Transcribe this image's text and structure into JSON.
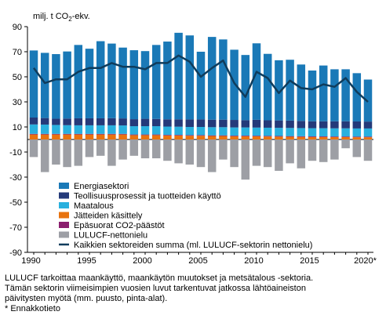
{
  "chart_data": {
    "type": "bar",
    "unit_label": {
      "prefix": "milj. t CO",
      "sub": "2",
      "suffix": "-ekv."
    },
    "years": [
      1990,
      1991,
      1992,
      1993,
      1994,
      1995,
      1996,
      1997,
      1998,
      1999,
      2000,
      2001,
      2002,
      2003,
      2004,
      2005,
      2006,
      2007,
      2008,
      2009,
      2010,
      2011,
      2012,
      2013,
      2014,
      2015,
      2016,
      2017,
      2018,
      2019,
      2020
    ],
    "x_tick_labels": [
      {
        "year": 1990,
        "label": "1990"
      },
      {
        "year": 1995,
        "label": "1995"
      },
      {
        "year": 2000,
        "label": "2000"
      },
      {
        "year": 2005,
        "label": "2005"
      },
      {
        "year": 2010,
        "label": "2010"
      },
      {
        "year": 2015,
        "label": "2015"
      },
      {
        "year": 2020,
        "label": "2020*"
      }
    ],
    "ylim": [
      -90,
      90
    ],
    "yticks": [
      90,
      70,
      50,
      30,
      10,
      -10,
      -30,
      -50,
      -70,
      -90
    ],
    "stacked_series": [
      {
        "name": "Jätteiden käsittely",
        "color": "#e8730f",
        "values": [
          4,
          4,
          4,
          4,
          4,
          4,
          4,
          4,
          4,
          3.5,
          3.5,
          3.5,
          3.2,
          3.2,
          3,
          3,
          2.8,
          2.8,
          2.6,
          2.6,
          2.5,
          2.4,
          2.3,
          2.2,
          2.1,
          2,
          2,
          1.9,
          1.9,
          1.8,
          1.8
        ]
      },
      {
        "name": "Epäsuorat CO2-päästöt",
        "color": "#8b1e6e",
        "values": [
          0.5,
          0.5,
          0.5,
          0.5,
          0.5,
          0.5,
          0.5,
          0.5,
          0.5,
          0.5,
          0.5,
          0.5,
          0.5,
          0.5,
          0.5,
          0.5,
          0.5,
          0.5,
          0.5,
          0.5,
          0.5,
          0.5,
          0.5,
          0.5,
          0.5,
          0.5,
          0.5,
          0.5,
          0.5,
          0.5,
          0.5
        ]
      },
      {
        "name": "Maatalous",
        "color": "#29b0de",
        "values": [
          7.5,
          7.4,
          7.1,
          6.9,
          6.8,
          6.8,
          6.8,
          6.8,
          6.7,
          6.6,
          6.6,
          6.6,
          6.6,
          6.5,
          6.5,
          6.5,
          6.5,
          6.5,
          6.5,
          6.5,
          6.5,
          6.5,
          6.5,
          6.5,
          6.5,
          6.5,
          6.5,
          6.5,
          6.5,
          6.5,
          6.5
        ]
      },
      {
        "name": "Teollisuusprosessit ja tuotteiden käyttö",
        "color": "#243a7a",
        "values": [
          5.5,
          5.2,
          5,
          5.3,
          5.6,
          5.6,
          5.6,
          5.7,
          5.6,
          5.6,
          5.9,
          5.8,
          5.8,
          5.9,
          6,
          6,
          6,
          6,
          6,
          5.8,
          6.2,
          5.9,
          5.9,
          5.9,
          5.7,
          5.5,
          5.5,
          5.6,
          5.6,
          5.6,
          5.5
        ]
      },
      {
        "name": "Energiasektori",
        "color": "#1a79b7",
        "values": [
          53.5,
          52,
          51.5,
          53.5,
          58.5,
          55.5,
          61.5,
          59.5,
          56.5,
          55,
          54,
          59,
          62,
          69,
          67,
          54,
          66,
          64,
          56,
          52,
          61,
          53,
          48,
          48.5,
          45,
          40.5,
          44.5,
          41.5,
          41.5,
          38.5,
          33.5
        ]
      }
    ],
    "negative_series": {
      "name": "LULUCF-nettonielu",
      "color": "#9d9fa5",
      "values": [
        -14,
        -26,
        -20,
        -22,
        -21,
        -14,
        -13,
        -21,
        -16,
        -13,
        -15,
        -15,
        -17,
        -19,
        -20,
        -22,
        -26,
        -16,
        -22,
        -32,
        -21,
        -22,
        -25,
        -19,
        -23,
        -17,
        -18,
        -16,
        -7,
        -14,
        -17
      ]
    },
    "line_series": {
      "name": "Kaikkien sektoreiden summa (ml. LULUCF-sektorin nettonielu)",
      "color": "#0f3c5c",
      "values": [
        57,
        45,
        48,
        48,
        54,
        57,
        57,
        61,
        58,
        58,
        56,
        61,
        61,
        67,
        62,
        50,
        57,
        63,
        45,
        34,
        54,
        49,
        37,
        47,
        41,
        40,
        44,
        42,
        49,
        38,
        30
      ]
    },
    "legend": [
      {
        "label": "Energiasektori",
        "color": "#1a79b7",
        "kind": "box"
      },
      {
        "label": "Teollisuusprosessit ja tuotteiden käyttö",
        "color": "#243a7a",
        "kind": "box"
      },
      {
        "label": "Maatalous",
        "color": "#29b0de",
        "kind": "box"
      },
      {
        "label": "Jätteiden käsittely",
        "color": "#e8730f",
        "kind": "box"
      },
      {
        "label": "Epäsuorat CO2-päästöt",
        "color": "#8b1e6e",
        "kind": "box"
      },
      {
        "label": "LULUCF-nettonielu",
        "color": "#9d9fa5",
        "kind": "box"
      },
      {
        "label": "Kaikkien sektoreiden summa (ml. LULUCF-sektorin nettonielu)",
        "color": "#0f3c5c",
        "kind": "line"
      }
    ],
    "legend_position": "lower-left",
    "grid": false
  },
  "notes": {
    "line1": "LULUCF tarkoittaa maankäyttö, maankäytön muutokset ja metsätalous -sektoria.",
    "line2": "Tämän sektorin viimeisimpien vuosien luvut tarkentuvat jatkossa lähtöaineiston",
    "line3": "päivitysten myötä (mm. puusto, pinta-alat).",
    "line4": "* Ennakkotieto"
  }
}
